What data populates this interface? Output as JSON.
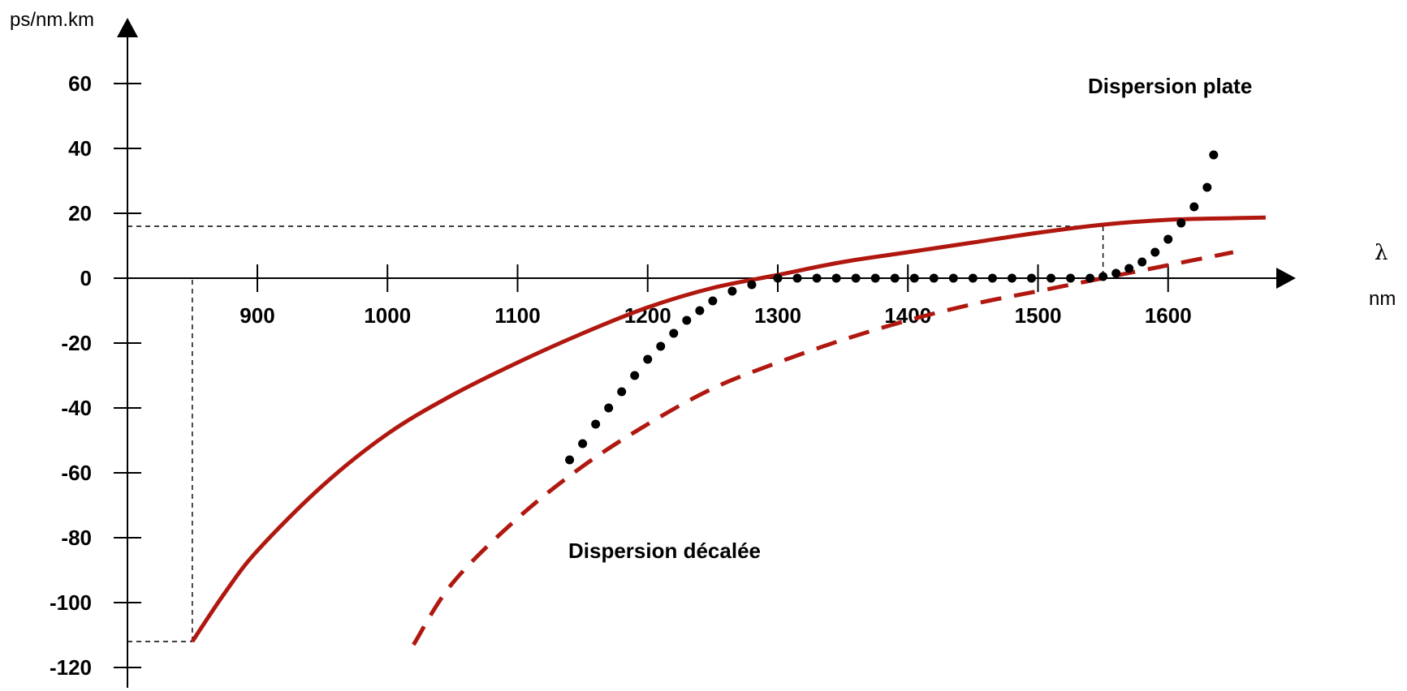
{
  "chart_data": {
    "type": "line",
    "title": "",
    "xlabel": "nm",
    "xlabel_symbol": "λ",
    "ylabel": "ps/nm.km",
    "xlim": [
      800,
      1700
    ],
    "ylim": [
      -125,
      75
    ],
    "x_ticks": [
      900,
      1000,
      1100,
      1200,
      1300,
      1400,
      1500,
      1600
    ],
    "y_ticks": [
      60,
      40,
      20,
      0,
      -20,
      -40,
      -60,
      -80,
      -100,
      -120
    ],
    "grid": false,
    "legend": "none",
    "colors": {
      "standard": "#b0180f",
      "shifted": "#b0180f",
      "flat": "#000000",
      "guides": "#000000",
      "axes": "#000000"
    },
    "series": [
      {
        "style": "solid",
        "x": [
          850,
          875,
          900,
          950,
          1000,
          1050,
          1100,
          1150,
          1200,
          1250,
          1300,
          1350,
          1400,
          1450,
          1500,
          1550,
          1600,
          1650,
          1675
        ],
        "y": [
          -112,
          -97,
          -84,
          -64,
          -48,
          -36,
          -26,
          -17,
          -9,
          -3,
          1,
          5,
          8,
          11,
          14,
          16.5,
          18,
          18.5,
          18.7
        ]
      },
      {
        "style": "dashed",
        "x": [
          1020,
          1050,
          1100,
          1150,
          1200,
          1250,
          1300,
          1350,
          1400,
          1450,
          1500,
          1550,
          1600,
          1650
        ],
        "y": [
          -113,
          -94,
          -74,
          -58,
          -45,
          -34,
          -26,
          -19,
          -13,
          -8,
          -4,
          0,
          4,
          8
        ]
      },
      {
        "style": "dotted",
        "x": [
          1140,
          1150,
          1160,
          1170,
          1180,
          1190,
          1200,
          1210,
          1220,
          1230,
          1240,
          1250,
          1265,
          1280,
          1300,
          1315,
          1330,
          1345,
          1360,
          1375,
          1390,
          1405,
          1420,
          1435,
          1450,
          1465,
          1480,
          1495,
          1510,
          1525,
          1540,
          1550,
          1560,
          1570,
          1580,
          1590,
          1600,
          1610,
          1620,
          1630,
          1635
        ],
        "y": [
          -56,
          -51,
          -45,
          -40,
          -35,
          -30,
          -25,
          -21,
          -17,
          -13,
          -10,
          -7,
          -4,
          -2,
          0,
          0,
          0,
          0,
          0,
          0,
          0,
          0,
          0,
          0,
          0,
          0,
          0,
          0,
          0,
          0,
          0,
          0.5,
          1.5,
          3,
          5,
          8,
          12,
          17,
          22,
          28,
          38
        ]
      }
    ],
    "reference_lines": [
      {
        "x": 850,
        "y": -112
      },
      {
        "x": 1550,
        "y": 16
      }
    ],
    "annotations": {
      "flat": "Dispersion plate",
      "shifted": "Dispersion décalée"
    }
  }
}
